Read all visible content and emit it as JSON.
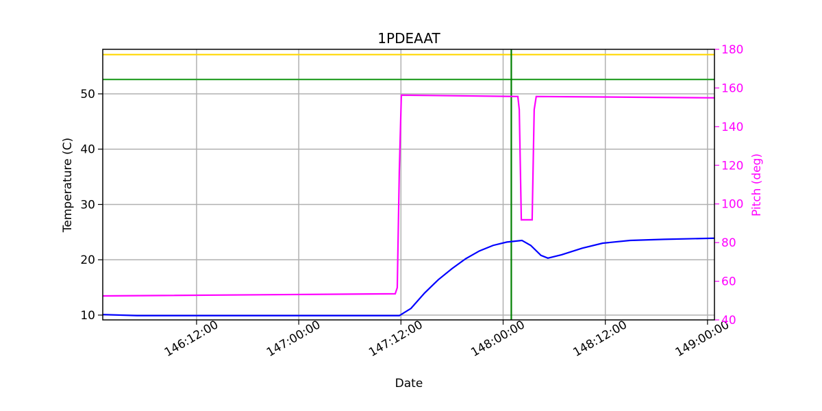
{
  "chart_data": {
    "type": "line",
    "title": "1PDEAAT",
    "x_label": "Date",
    "y_label": "Temperature (C)",
    "y2_label": "Pitch (deg)",
    "xlim": [
      146.041,
      149.034
    ],
    "xticks": [
      {
        "value": 146.5,
        "label": "146:12:00"
      },
      {
        "value": 147.0,
        "label": "147:00:00"
      },
      {
        "value": 147.5,
        "label": "147:12:00"
      },
      {
        "value": 148.0,
        "label": "148:00:00"
      },
      {
        "value": 148.5,
        "label": "148:12:00"
      },
      {
        "value": 149.0,
        "label": "149:00:00"
      }
    ],
    "ylim": [
      9.13,
      58.05
    ],
    "yticks": [
      10,
      20,
      30,
      40,
      50
    ],
    "y2lim": [
      40,
      180
    ],
    "y2ticks": [
      40,
      60,
      80,
      100,
      120,
      140,
      160,
      180
    ],
    "y2_color": "#ff00ff",
    "grid": true,
    "series": [
      {
        "name": "Temperature",
        "color": "#0000ff",
        "x": [
          146.041,
          146.209,
          147.492,
          147.549,
          147.616,
          147.683,
          147.75,
          147.817,
          147.884,
          147.951,
          148.018,
          148.092,
          148.135,
          148.185,
          148.219,
          148.286,
          148.387,
          148.487,
          148.621,
          148.789,
          149.034
        ],
        "values": [
          10.1,
          9.9,
          9.9,
          11.2,
          14.0,
          16.4,
          18.4,
          20.2,
          21.6,
          22.6,
          23.2,
          23.5,
          22.6,
          20.8,
          20.3,
          20.9,
          22.1,
          23.0,
          23.5,
          23.7,
          23.9
        ]
      },
      {
        "name": "Pitch",
        "color": "#ff00ff",
        "axis": "y2",
        "x": [
          146.041,
          147.472,
          147.482,
          147.492,
          147.502,
          148.072,
          148.079,
          148.089,
          148.142,
          148.152,
          148.162,
          149.034
        ],
        "values": [
          52.4,
          53.5,
          56.7,
          116.9,
          156.3,
          155.6,
          148.8,
          91.8,
          91.8,
          148.8,
          155.6,
          154.9
        ]
      }
    ],
    "hlines": [
      {
        "value": 57.1,
        "color": "#ffd700"
      },
      {
        "value": 52.6,
        "color": "#2ca02c"
      }
    ],
    "vlines": [
      {
        "value": 148.04,
        "color": "#008000"
      }
    ]
  }
}
